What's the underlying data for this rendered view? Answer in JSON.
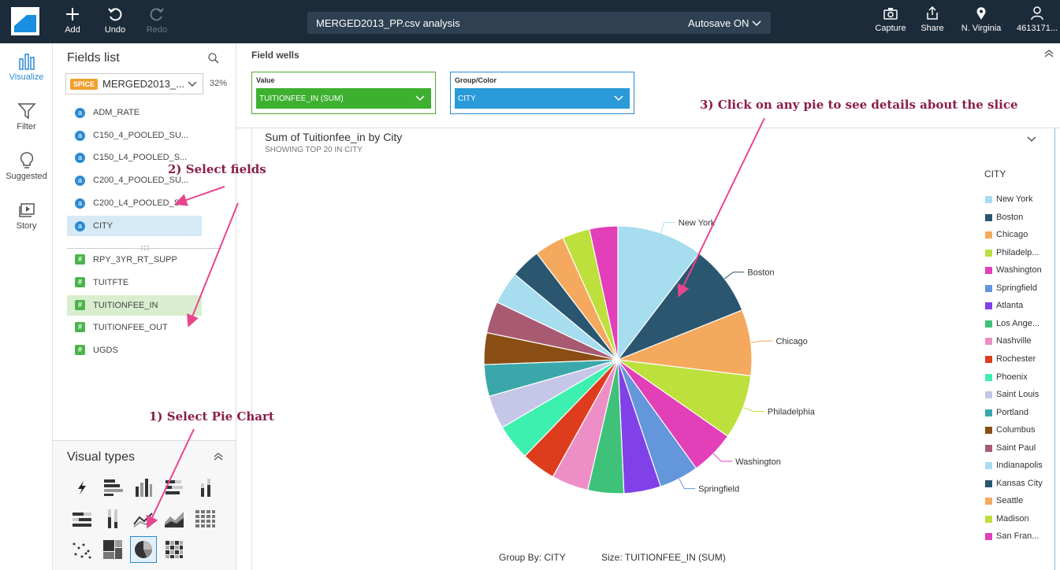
{
  "topbar": {
    "add": "Add",
    "undo": "Undo",
    "redo": "Redo",
    "analysis_title": "MERGED2013_PP.csv analysis",
    "autosave": "Autosave ON",
    "capture": "Capture",
    "share": "Share",
    "region": "N. Virginia",
    "account": "4613171..."
  },
  "rail": {
    "visualize": "Visualize",
    "filter": "Filter",
    "suggested": "Suggested",
    "story": "Story"
  },
  "fields_panel": {
    "title": "Fields list",
    "spice": "SPICE",
    "dataset": "MERGED2013_...",
    "percent": "32%",
    "dimensions": [
      "ADM_RATE",
      "C150_4_POOLED_SU...",
      "C150_L4_POOLED_S...",
      "C200_4_POOLED_SU...",
      "C200_L4_POOLED_S...",
      "CITY"
    ],
    "measures": [
      "RPY_3YR_RT_SUPP",
      "TUITFTE",
      "TUITIONFEE_IN",
      "TUITIONFEE_OUT",
      "UGDS"
    ]
  },
  "visual_types": {
    "title": "Visual types"
  },
  "field_wells": {
    "title": "Field wells",
    "value_label": "Value",
    "value_field": "TUITIONFEE_IN (SUM)",
    "group_label": "Group/Color",
    "group_field": "CITY"
  },
  "chart": {
    "title": "Sum of Tuitionfee_in by City",
    "subtitle": "SHOWING TOP 20 IN CITY",
    "legend_title": "CITY",
    "footer_group": "Group By: CITY",
    "footer_size": "Size: TUITIONFEE_IN (SUM)"
  },
  "annotations": {
    "step1": "1) Select Pie Chart",
    "step2": "2) Select fields",
    "step3": "3) Click on any pie to see details about the slice"
  },
  "chart_data": {
    "type": "pie",
    "categories": [
      "New York",
      "Boston",
      "Chicago",
      "Philadelphia",
      "Washington",
      "Springfield",
      "Atlanta",
      "Los Angeles",
      "Nashville",
      "Rochester",
      "Phoenix",
      "Saint Louis",
      "Portland",
      "Columbus",
      "Saint Paul",
      "Indianapolis",
      "Kansas City",
      "Seattle",
      "Madison",
      "San Francisco"
    ],
    "legend_labels": [
      "New York",
      "Boston",
      "Chicago",
      "Philadelp...",
      "Washington",
      "Springfield",
      "Atlanta",
      "Los Ange...",
      "Nashville",
      "Rochester",
      "Phoenix",
      "Saint Louis",
      "Portland",
      "Columbus",
      "Saint Paul",
      "Indianapolis",
      "Kansas City",
      "Seattle",
      "Madison",
      "San Fran..."
    ],
    "values": [
      10.0,
      8.3,
      7.7,
      7.5,
      5.2,
      4.6,
      4.3,
      4.2,
      4.3,
      4.0,
      4.2,
      3.9,
      3.7,
      3.7,
      3.7,
      3.8,
      3.5,
      3.5,
      3.2,
      3.3
    ],
    "colors": [
      "#a6ddef",
      "#2a5670",
      "#f4a95e",
      "#bde03d",
      "#e23fb8",
      "#6496dc",
      "#8141e8",
      "#3ec27a",
      "#ed8fc6",
      "#dd3d1c",
      "#3ef0b0",
      "#c6c6e8",
      "#3aa8aa",
      "#8a4e14",
      "#a85a72",
      "#a6ddef",
      "#2a5670",
      "#f4a95e",
      "#bde03d",
      "#e23fb8"
    ],
    "callouts": [
      "New York",
      "Boston",
      "Chicago",
      "Philadelphia",
      "Washington",
      "Springfield"
    ],
    "legend_position": "right"
  }
}
